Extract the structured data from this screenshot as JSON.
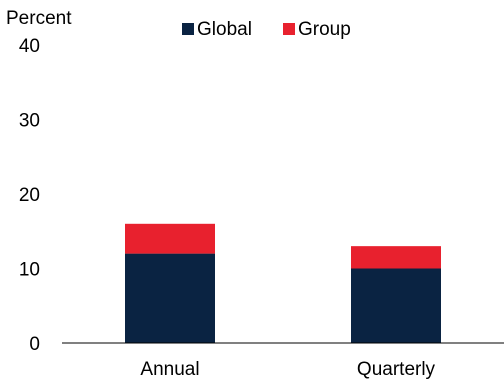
{
  "chart_data": {
    "type": "bar",
    "stacked": true,
    "y_unit_label": "Percent",
    "categories": [
      "Annual",
      "Quarterly"
    ],
    "series": [
      {
        "name": "Global",
        "values": [
          12,
          10
        ],
        "color": "#0a2342"
      },
      {
        "name": "Group",
        "values": [
          4,
          3
        ],
        "color": "#e8212e"
      }
    ],
    "ylim": [
      0,
      40
    ],
    "yticks": [
      "0",
      "10",
      "20",
      "30",
      "40"
    ],
    "grid": false,
    "legend_position": "top-center"
  }
}
